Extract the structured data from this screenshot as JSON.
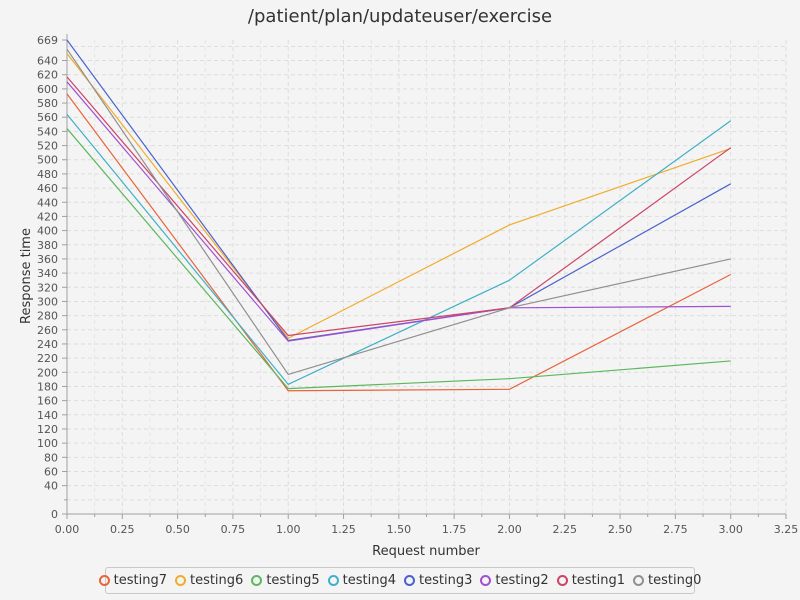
{
  "chart_data": {
    "type": "line",
    "title": "/patient/plan/updateuser/exercise",
    "xlabel": "Request number",
    "ylabel": "Response time",
    "xlim": [
      0,
      3.25
    ],
    "ylim": [
      0,
      669
    ],
    "x_ticks": [
      "0.00",
      "0.25",
      "0.50",
      "0.75",
      "1.00",
      "1.25",
      "1.50",
      "1.75",
      "2.00",
      "2.25",
      "2.50",
      "2.75",
      "3.00",
      "3.25"
    ],
    "y_ticks": [
      "0",
      "40",
      "60",
      "80",
      "100",
      "120",
      "140",
      "160",
      "180",
      "200",
      "220",
      "240",
      "260",
      "280",
      "300",
      "320",
      "340",
      "360",
      "380",
      "400",
      "420",
      "440",
      "460",
      "480",
      "500",
      "520",
      "540",
      "560",
      "580",
      "600",
      "620",
      "640",
      "669"
    ],
    "grid": true,
    "legend_position": "bottom",
    "x": [
      0,
      1,
      2,
      3
    ],
    "series": [
      {
        "name": "testing7",
        "color": "#e8643a",
        "values": [
          593,
          174,
          176,
          338
        ]
      },
      {
        "name": "testing6",
        "color": "#f0ac2c",
        "values": [
          650,
          248,
          408,
          516
        ]
      },
      {
        "name": "testing5",
        "color": "#5cb85c",
        "values": [
          544,
          177,
          191,
          216
        ]
      },
      {
        "name": "testing4",
        "color": "#40b0c8",
        "values": [
          564,
          183,
          330,
          555
        ]
      },
      {
        "name": "testing3",
        "color": "#4a63cc",
        "values": [
          669,
          245,
          291,
          466
        ]
      },
      {
        "name": "testing2",
        "color": "#a050d0",
        "values": [
          610,
          244,
          291,
          293
        ]
      },
      {
        "name": "testing1",
        "color": "#cc4466",
        "values": [
          617,
          252,
          291,
          517
        ]
      },
      {
        "name": "testing0",
        "color": "#909090",
        "values": [
          656,
          197,
          291,
          360
        ]
      }
    ]
  }
}
